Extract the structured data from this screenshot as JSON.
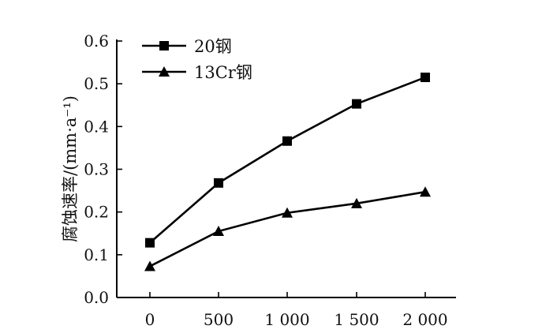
{
  "chart_data": {
    "type": "line",
    "title": "",
    "xlabel": "",
    "ylabel": "腐蚀速率/(mm·a⁻¹)",
    "x": [
      0,
      500,
      1000,
      1500,
      2000
    ],
    "x_tick_labels": [
      "0",
      "500",
      "1 000",
      "1 500",
      "2 000"
    ],
    "y_ticks": [
      "0.0",
      "0.1",
      "0.2",
      "0.3",
      "0.4",
      "0.5",
      "0.6"
    ],
    "ylim": [
      0,
      0.6
    ],
    "grid": false,
    "legend_position": "top-left",
    "series": [
      {
        "name": "20钢",
        "marker": "square",
        "color": "#000000",
        "values": [
          0.128,
          0.268,
          0.366,
          0.453,
          0.515
        ]
      },
      {
        "name": "13Cr钢",
        "marker": "triangle",
        "color": "#000000",
        "values": [
          0.073,
          0.155,
          0.198,
          0.22,
          0.247
        ]
      }
    ]
  }
}
